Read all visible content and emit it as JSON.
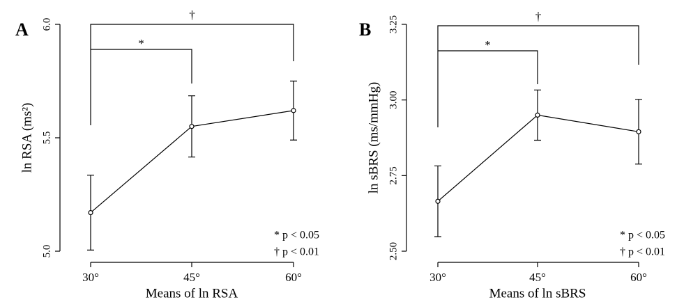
{
  "chart_data": [
    {
      "type": "line",
      "panel_label": "A",
      "x_label": "Means of ln RSA",
      "y_label": "ln RSA (ms²)",
      "categories": [
        "30°",
        "45°",
        "60°"
      ],
      "series": [
        {
          "color": "#000000",
          "values": [
            5.17,
            5.55,
            5.62
          ],
          "errors": [
            0.165,
            0.135,
            0.13
          ]
        }
      ],
      "ylim": [
        5.0,
        6.0
      ],
      "yticks": [
        {
          "value": 5.0,
          "label": "5.0"
        },
        {
          "value": 5.5,
          "label": "5.5"
        },
        {
          "value": 6.0,
          "label": "6.0"
        }
      ],
      "annotations": [
        "*",
        "†"
      ],
      "notes": [
        "* p < 0.05",
        "† p < 0.01"
      ]
    },
    {
      "type": "line",
      "panel_label": "B",
      "x_label": "Means of ln sBRS",
      "y_label": "ln sBRS (ms/mmHg)",
      "categories": [
        "30°",
        "45°",
        "60°"
      ],
      "series": [
        {
          "color": "#000000",
          "values": [
            2.665,
            2.95,
            2.895
          ],
          "errors": [
            0.117,
            0.083,
            0.107
          ]
        }
      ],
      "ylim": [
        2.5,
        3.25
      ],
      "yticks": [
        {
          "value": 2.5,
          "label": "2.50"
        },
        {
          "value": 2.75,
          "label": "2.75"
        },
        {
          "value": 3.0,
          "label": "3.00"
        },
        {
          "value": 3.25,
          "label": "3.25"
        }
      ],
      "annotations": [
        "*",
        "†"
      ],
      "notes": [
        "* p < 0.05",
        "† p < 0.01"
      ]
    }
  ]
}
